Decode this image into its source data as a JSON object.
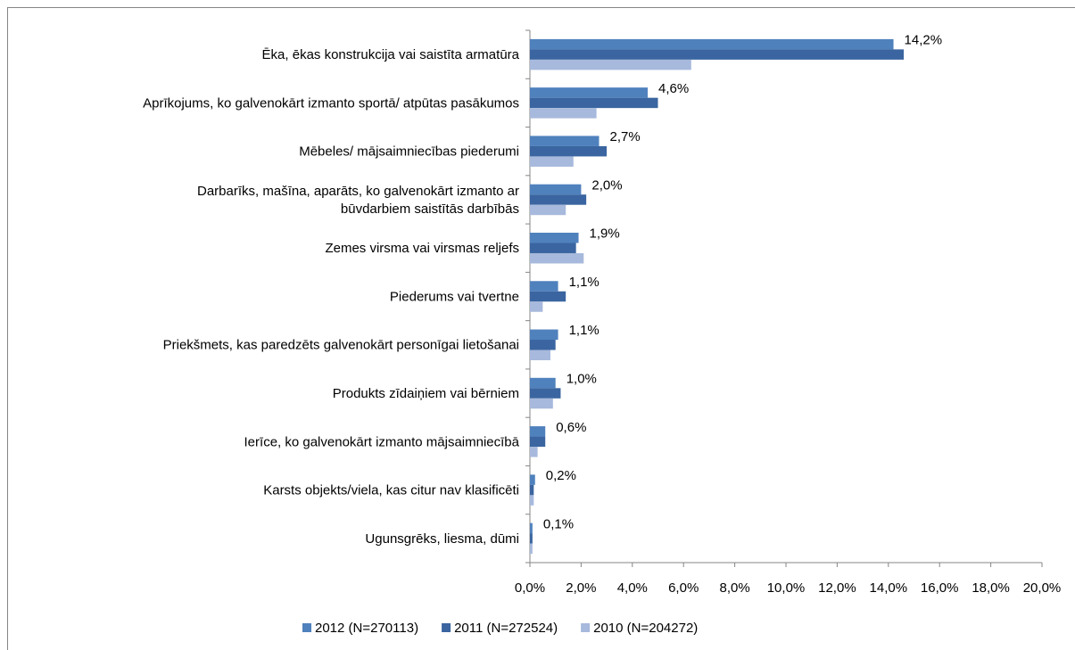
{
  "chart_data": {
    "type": "barh",
    "categories": [
      "Ēka, ēkas konstrukcija vai saistīta armatūra",
      "Aprīkojums, ko galvenokārt izmanto sportā/ atpūtas pasākumos",
      "Mēbeles/ mājsaimniecības piederumi",
      "Darbarīks, mašīna, aparāts, ko galvenokārt izmanto ar\nbūvdarbiem saistītās darbībās",
      "Zemes virsma vai virsmas reljefs",
      "Piederums vai tvertne",
      "Priekšmets, kas paredzēts galvenokārt personīgai lietošanai",
      "Produkts zīdaiņiem vai bērniem",
      "Ierīce, ko galvenokārt izmanto mājsaimniecībā",
      "Karsts objekts/viela, kas citur nav klasificēti",
      "Ugunsgrēks, liesma, dūmi"
    ],
    "series": [
      {
        "name": "2012 (N=270113)",
        "color": "#4f81bd",
        "values": [
          14.2,
          4.6,
          2.7,
          2.0,
          1.9,
          1.1,
          1.1,
          1.0,
          0.6,
          0.2,
          0.1
        ],
        "value_labels": [
          "14,2%",
          "4,6%",
          "2,7%",
          "2,0%",
          "1,9%",
          "1,1%",
          "1,1%",
          "1,0%",
          "0,6%",
          "0,2%",
          "0,1%"
        ]
      },
      {
        "name": "2011 (N=272524)",
        "color": "#3a65a0",
        "values": [
          14.6,
          5.0,
          3.0,
          2.2,
          1.8,
          1.4,
          1.0,
          1.2,
          0.6,
          0.15,
          0.1
        ]
      },
      {
        "name": "2010 (N=204272)",
        "color": "#a7b9dc",
        "values": [
          6.3,
          2.6,
          1.7,
          1.4,
          2.1,
          0.5,
          0.8,
          0.9,
          0.3,
          0.15,
          0.1
        ]
      }
    ],
    "xlim": [
      0,
      20
    ],
    "xticks": [
      {
        "value": 0,
        "label": "0,0%"
      },
      {
        "value": 2,
        "label": "2,0%"
      },
      {
        "value": 4,
        "label": "4,0%"
      },
      {
        "value": 6,
        "label": "6,0%"
      },
      {
        "value": 8,
        "label": "8,0%"
      },
      {
        "value": 10,
        "label": "10,0%"
      },
      {
        "value": 12,
        "label": "12,0%"
      },
      {
        "value": 14,
        "label": "14,0%"
      },
      {
        "value": 16,
        "label": "16,0%"
      },
      {
        "value": 18,
        "label": "18,0%"
      },
      {
        "value": 20,
        "label": "20,0%"
      }
    ],
    "legend": "bottom"
  }
}
